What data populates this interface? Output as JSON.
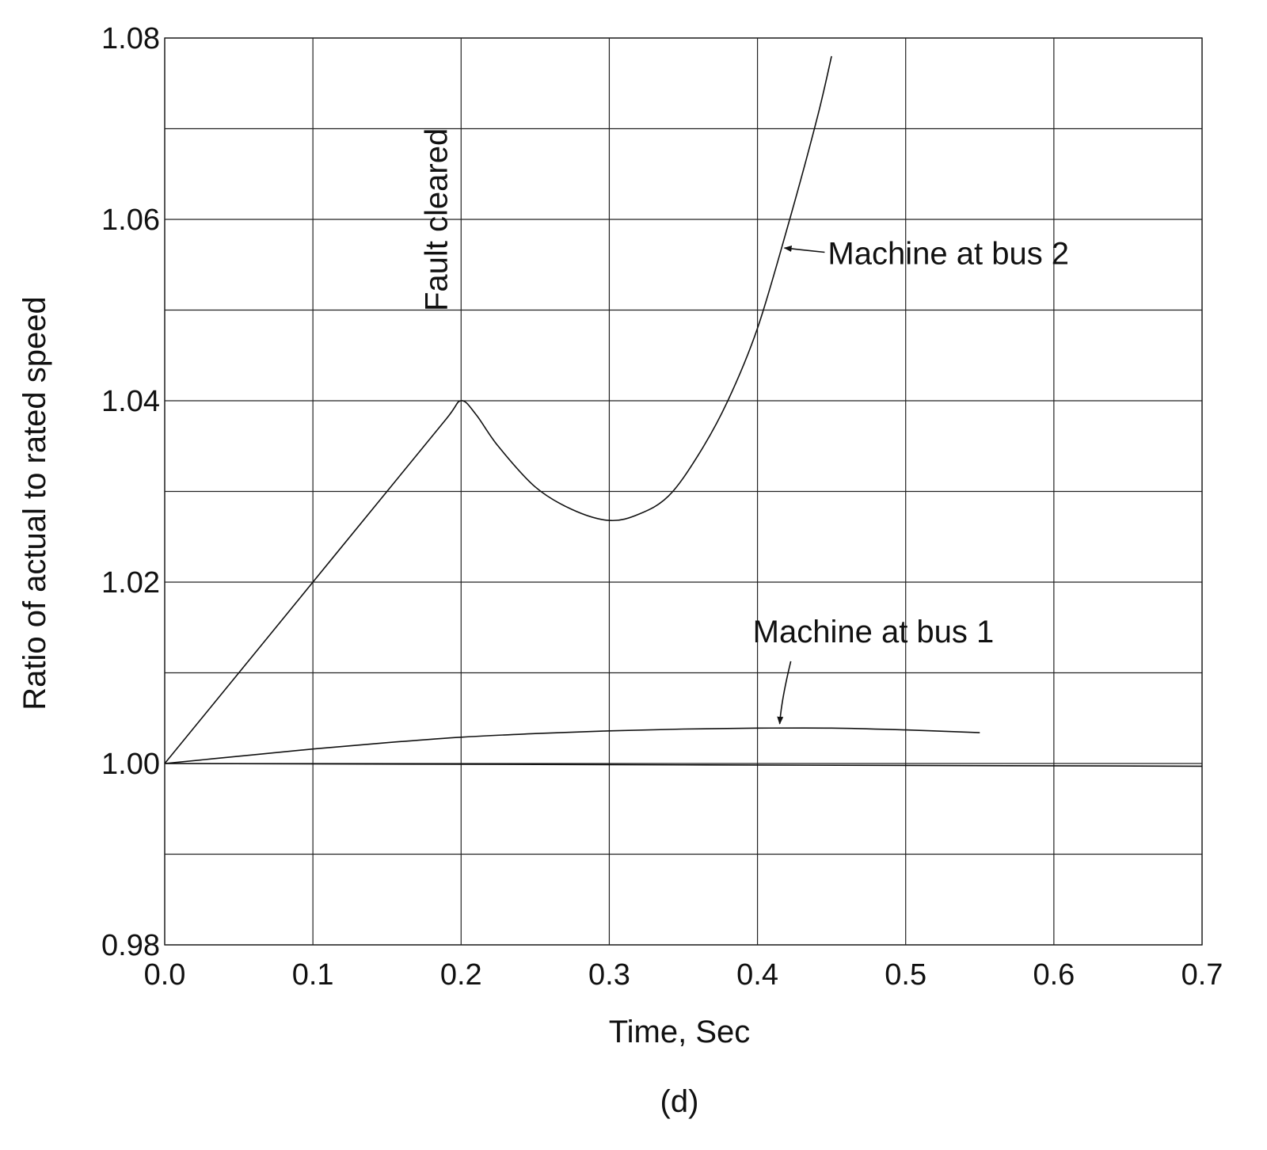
{
  "chart_data": {
    "type": "line",
    "title": "",
    "xlabel": "Time, Sec",
    "ylabel": "Ratio of actual to rated speed",
    "caption": "(d)",
    "xlim": [
      0.0,
      0.7
    ],
    "ylim": [
      0.98,
      1.08
    ],
    "x_ticks": [
      "0.0",
      "0.1",
      "0.2",
      "0.3",
      "0.4",
      "0.5",
      "0.6",
      "0.7"
    ],
    "y_ticks": [
      "0.98",
      "1.00",
      "1.02",
      "1.04",
      "1.06",
      "1.08"
    ],
    "grid": true,
    "series": [
      {
        "name": "Machine at bus 2",
        "x": [
          0.0,
          0.05,
          0.1,
          0.15,
          0.19,
          0.2,
          0.21,
          0.225,
          0.25,
          0.275,
          0.3,
          0.32,
          0.34,
          0.36,
          0.38,
          0.4,
          0.42,
          0.44,
          0.45
        ],
        "y": [
          1.0,
          1.01,
          1.02,
          1.03,
          1.038,
          1.04,
          1.0385,
          1.035,
          1.0305,
          1.028,
          1.0268,
          1.0275,
          1.0295,
          1.034,
          1.04,
          1.048,
          1.059,
          1.071,
          1.078
        ]
      },
      {
        "name": "Machine at bus 1",
        "x": [
          0.0,
          0.05,
          0.1,
          0.15,
          0.2,
          0.25,
          0.3,
          0.35,
          0.4,
          0.45,
          0.5,
          0.55
        ],
        "y": [
          1.0,
          1.0008,
          1.0016,
          1.0023,
          1.0029,
          1.0033,
          1.0036,
          1.0038,
          1.0039,
          1.0039,
          1.0037,
          1.0034
        ]
      },
      {
        "name": "",
        "x": [
          0.0,
          0.7
        ],
        "y": [
          1.0,
          0.9997
        ]
      }
    ],
    "annotations": [
      {
        "text": "Fault cleared",
        "x": 0.2,
        "y": 1.0705
      },
      {
        "text": "Machine at bus 2",
        "x": 0.44,
        "y": 1.0562,
        "arrow_to": [
          0.415,
          1.0565
        ]
      },
      {
        "text": "Machine at bus 1",
        "x": 0.415,
        "y": 1.0145,
        "arrow_to": [
          0.415,
          1.0042
        ]
      }
    ]
  }
}
